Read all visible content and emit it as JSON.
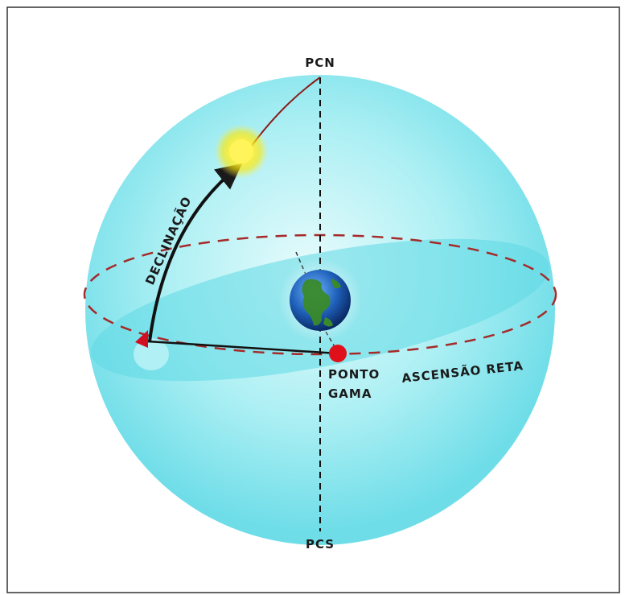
{
  "labels": {
    "north_pole": "PCN",
    "south_pole": "PCS",
    "declination": "DECLINAÇÃO",
    "right_ascension": "ASCENSÃO RETA",
    "vernal_point_line1": "PONTO",
    "vernal_point_line2": "GAMA"
  },
  "colors": {
    "sphere": "#7fe6ee",
    "equator_plane": "#5fd8e4",
    "equator_dashes": "#a52a2a",
    "sun": "#ffee33",
    "vernal_point": "#e0101a",
    "arc_line": "#111111",
    "frame": "#333333"
  },
  "icons": {
    "sun": "sun-icon",
    "earth": "earth-globe-icon",
    "vernal_point": "red-dot-icon"
  }
}
